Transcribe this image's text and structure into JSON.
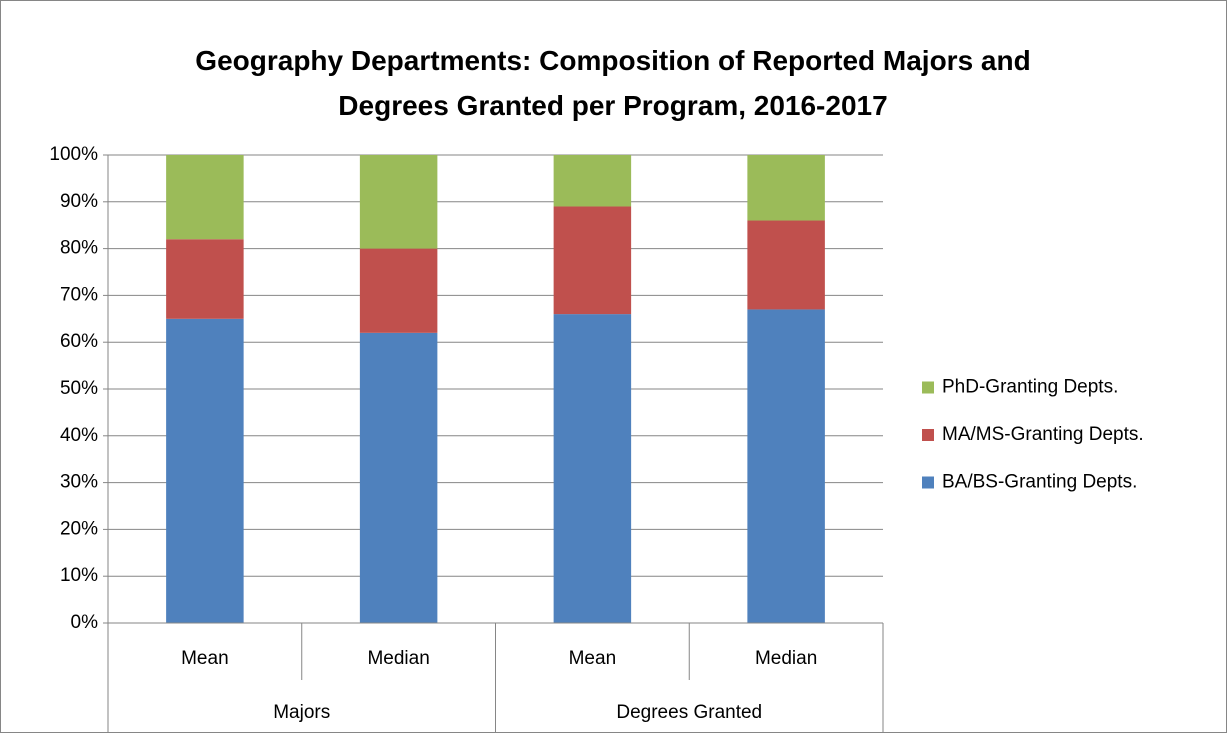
{
  "chart_data": {
    "type": "stacked_bar",
    "title": "Geography Departments: Composition of Reported Majors and Degrees Granted per Program, 2016-2017",
    "groups": [
      {
        "name": "Majors",
        "categories": [
          "Mean",
          "Median"
        ]
      },
      {
        "name": "Degrees Granted",
        "categories": [
          "Mean",
          "Median"
        ]
      }
    ],
    "series": [
      {
        "name": "BA/BS-Granting Depts.",
        "color": "#4f81bd",
        "values": [
          65,
          62,
          66,
          67
        ]
      },
      {
        "name": "MA/MS-Granting Depts.",
        "color": "#c0504d",
        "values": [
          17,
          18,
          23,
          19
        ]
      },
      {
        "name": "PhD-Granting Depts.",
        "color": "#9bbb59",
        "values": [
          18,
          20,
          11,
          14
        ]
      }
    ],
    "ylim": [
      0,
      100
    ],
    "yticks": [
      {
        "value": 0,
        "label": "0%"
      },
      {
        "value": 10,
        "label": "10%"
      },
      {
        "value": 20,
        "label": "20%"
      },
      {
        "value": 30,
        "label": "30%"
      },
      {
        "value": 40,
        "label": "40%"
      },
      {
        "value": 50,
        "label": "50%"
      },
      {
        "value": 60,
        "label": "60%"
      },
      {
        "value": 70,
        "label": "70%"
      },
      {
        "value": 80,
        "label": "80%"
      },
      {
        "value": 90,
        "label": "90%"
      },
      {
        "value": 100,
        "label": "100%"
      }
    ],
    "grid": true,
    "legend": "right"
  }
}
